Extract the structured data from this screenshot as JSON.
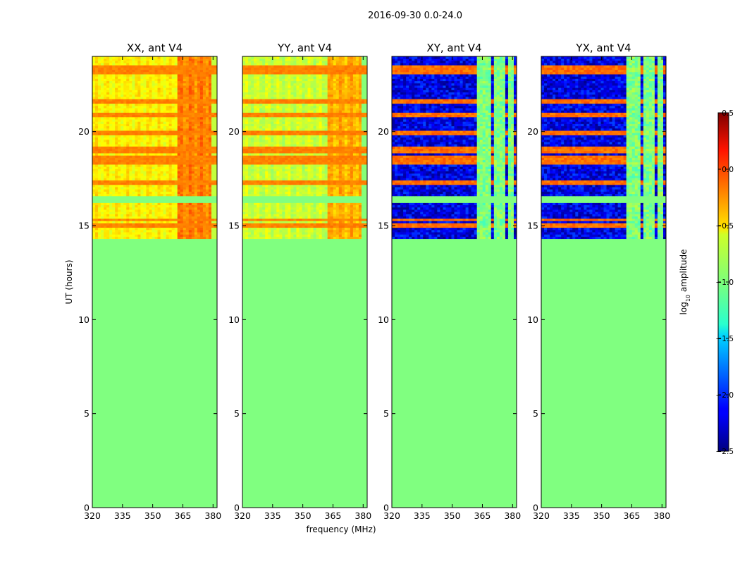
{
  "chart_data": {
    "type": "heatmap",
    "title": "2016-09-30 0.0-24.0",
    "xlabel": "frequency (MHz)",
    "ylabel": "UT (hours)",
    "xlim": [
      320,
      382
    ],
    "ylim": [
      0,
      24
    ],
    "xticks": [
      320,
      335,
      350,
      365,
      380
    ],
    "yticks": [
      0,
      5,
      10,
      15,
      20
    ],
    "panels": [
      {
        "title": "XX, ant V4",
        "pol": "XX",
        "base_level": -0.6,
        "high_band_level": -0.25,
        "flag_level": -1.0,
        "data_start_hours": 14.3
      },
      {
        "title": "YY, ant V4",
        "pol": "YY",
        "base_level": -0.78,
        "high_band_level": -0.4,
        "flag_level": -1.0,
        "data_start_hours": 14.3
      },
      {
        "title": "XY, ant V4",
        "pol": "XY",
        "base_level": -2.3,
        "high_band_level": -1.0,
        "flag_level": -1.0,
        "data_start_hours": 14.3
      },
      {
        "title": "YX, ant V4",
        "pol": "YX",
        "base_level": -2.3,
        "high_band_level": -1.0,
        "flag_level": -1.0,
        "data_start_hours": 14.3
      }
    ],
    "rfi_lines_hours": [
      15.0,
      15.25,
      17.2,
      18.3,
      18.55,
      18.95,
      19.0,
      19.9,
      20.8,
      21.6,
      23.4,
      23.1
    ],
    "flagged_band_hours": [
      16.1,
      16.5
    ],
    "colorbar": {
      "label_prefix": "log",
      "label_sub": "10",
      "label_suffix": " amplitude",
      "min": -2.5,
      "max": 0.5,
      "ticks": [
        "0.5",
        "0.0",
        "−0.5",
        "−1.0",
        "−1.5",
        "−2.0",
        "−2.5"
      ],
      "tick_values": [
        0.5,
        0.0,
        -0.5,
        -1.0,
        -1.5,
        -2.0,
        -2.5
      ]
    }
  }
}
